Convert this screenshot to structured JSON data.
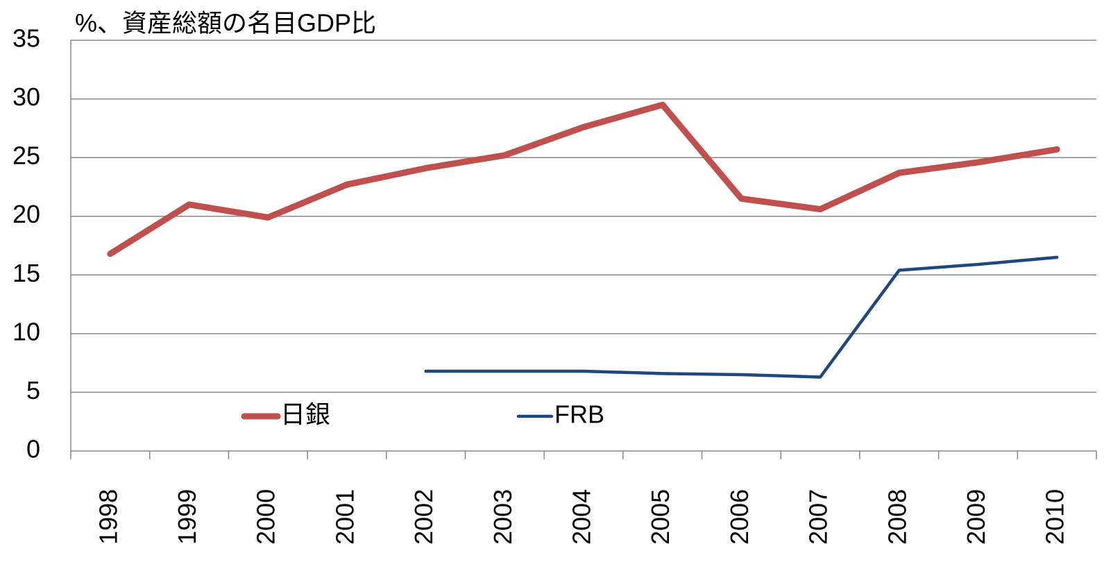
{
  "chart_data": {
    "type": "line",
    "title": "%、資産総額の名目GDP比",
    "categories": [
      "1998",
      "1999",
      "2000",
      "2001",
      "2002",
      "2003",
      "2004",
      "2005",
      "2006",
      "2007",
      "2008",
      "2009",
      "2010"
    ],
    "series": [
      {
        "name": "日銀",
        "color": "#c0504d",
        "line_width": 9,
        "values": [
          16.8,
          21.0,
          19.9,
          22.7,
          24.1,
          25.2,
          27.6,
          29.5,
          21.5,
          20.6,
          23.7,
          24.6,
          25.7
        ]
      },
      {
        "name": "FRB",
        "color": "#1f497d",
        "line_width": 4.5,
        "values": [
          null,
          null,
          null,
          null,
          6.8,
          6.8,
          6.8,
          6.6,
          6.5,
          6.3,
          15.4,
          15.9,
          16.5
        ]
      }
    ],
    "ylim": [
      0,
      35
    ],
    "yticks": [
      0,
      5,
      10,
      15,
      20,
      25,
      30,
      35
    ],
    "grid": true,
    "legend": "bottom"
  }
}
